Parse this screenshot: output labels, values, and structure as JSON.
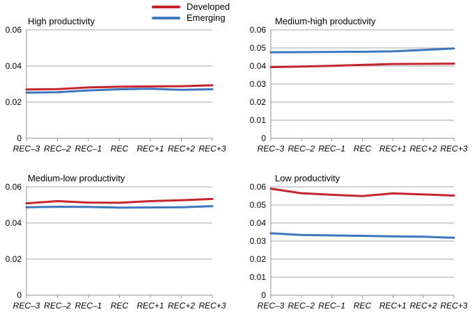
{
  "legend": {
    "items": [
      {
        "label": "Developed",
        "color": "#C5242D"
      },
      {
        "label": "Emerging",
        "color": "#4179C1"
      }
    ]
  },
  "style": {
    "grid_color": "#A3A3A3",
    "axis_color": "#8F8F8F",
    "developed_color": "#C5242D",
    "emerging_color": "#3C74BD"
  },
  "chart_data": [
    {
      "type": "line",
      "title": "High productivity",
      "categories": [
        "REC–3",
        "REC–2",
        "REC–1",
        "REC",
        "REC+1",
        "REC+2",
        "REC+3"
      ],
      "ylim": [
        0,
        0.06
      ],
      "yticks": [
        {
          "value": 0,
          "label": "0"
        },
        {
          "value": 0.02,
          "label": "0.02"
        },
        {
          "value": 0.04,
          "label": "0.04"
        },
        {
          "value": 0.06,
          "label": "0.06"
        }
      ],
      "series": [
        {
          "name": "Developed",
          "color": "#C5242D",
          "values": [
            0.027,
            0.0272,
            0.0281,
            0.0285,
            0.0287,
            0.0288,
            0.0293
          ]
        },
        {
          "name": "Emerging",
          "color": "#3C74BD",
          "values": [
            0.0253,
            0.0255,
            0.0265,
            0.0271,
            0.0274,
            0.0268,
            0.0271
          ]
        }
      ]
    },
    {
      "type": "line",
      "title": "Medium-high productivity",
      "categories": [
        "REC–3",
        "REC–2",
        "REC–1",
        "REC",
        "REC+1",
        "REC+2",
        "REC+3"
      ],
      "ylim": [
        0,
        0.06
      ],
      "yticks": [
        {
          "value": 0,
          "label": "0"
        },
        {
          "value": 0.01,
          "label": "0.01"
        },
        {
          "value": 0.02,
          "label": "0.02"
        },
        {
          "value": 0.03,
          "label": "0.03"
        },
        {
          "value": 0.04,
          "label": "0.04"
        },
        {
          "value": 0.05,
          "label": "0.05"
        },
        {
          "value": 0.06,
          "label": "0.06"
        }
      ],
      "series": [
        {
          "name": "Developed",
          "color": "#C5242D",
          "values": [
            0.0394,
            0.0397,
            0.0401,
            0.0406,
            0.0411,
            0.0412,
            0.0413
          ]
        },
        {
          "name": "Emerging",
          "color": "#3C74BD",
          "values": [
            0.0476,
            0.0477,
            0.0478,
            0.0479,
            0.0481,
            0.0489,
            0.0497
          ]
        }
      ]
    },
    {
      "type": "line",
      "title": "Medium-low productivity",
      "categories": [
        "REC–3",
        "REC–2",
        "REC–1",
        "REC",
        "REC+1",
        "REC+2",
        "REC+3"
      ],
      "ylim": [
        0,
        0.06
      ],
      "yticks": [
        {
          "value": 0,
          "label": "0"
        },
        {
          "value": 0.02,
          "label": "0.02"
        },
        {
          "value": 0.04,
          "label": "0.04"
        },
        {
          "value": 0.06,
          "label": "0.06"
        }
      ],
      "series": [
        {
          "name": "Developed",
          "color": "#C5242D",
          "values": [
            0.0509,
            0.0521,
            0.0513,
            0.0512,
            0.0521,
            0.0526,
            0.0533
          ]
        },
        {
          "name": "Emerging",
          "color": "#3C74BD",
          "values": [
            0.0487,
            0.049,
            0.0489,
            0.0485,
            0.0486,
            0.0487,
            0.0493
          ]
        }
      ]
    },
    {
      "type": "line",
      "title": "Low productivity",
      "categories": [
        "REC–3",
        "REC–2",
        "REC–1",
        "REC",
        "REC+1",
        "REC+2",
        "REC+3"
      ],
      "ylim": [
        0,
        0.06
      ],
      "yticks": [
        {
          "value": 0,
          "label": "0"
        },
        {
          "value": 0.01,
          "label": "0.01"
        },
        {
          "value": 0.02,
          "label": "0.02"
        },
        {
          "value": 0.03,
          "label": "0.03"
        },
        {
          "value": 0.04,
          "label": "0.04"
        },
        {
          "value": 0.05,
          "label": "0.05"
        },
        {
          "value": 0.06,
          "label": "0.06"
        }
      ],
      "series": [
        {
          "name": "Developed",
          "color": "#C5242D",
          "values": [
            0.059,
            0.0565,
            0.0556,
            0.0549,
            0.0564,
            0.0558,
            0.0552
          ]
        },
        {
          "name": "Emerging",
          "color": "#3C74BD",
          "values": [
            0.0343,
            0.0334,
            0.0331,
            0.0329,
            0.0326,
            0.0324,
            0.0318
          ]
        }
      ]
    }
  ]
}
